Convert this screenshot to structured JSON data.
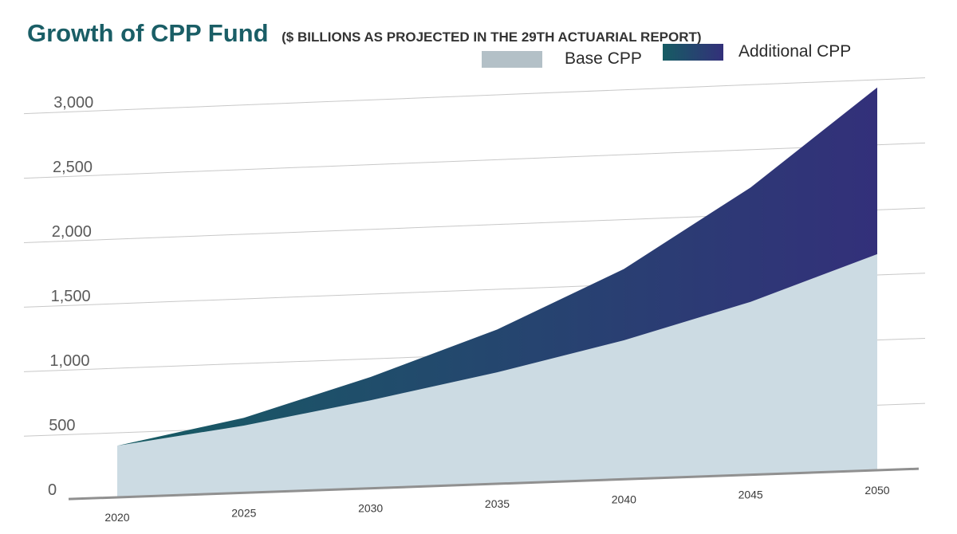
{
  "colors": {
    "title": "#1a5e66",
    "subtitle": "#333333",
    "base_area": "#ccdbe3",
    "base_legend": "#b3c0c7",
    "additional_start": "#165c63",
    "additional_end": "#33307a",
    "gridline": "#c8c8c8",
    "axis": "#909090",
    "tick_text": "#5a5a5a"
  },
  "chart_data": {
    "type": "area",
    "stacked": true,
    "title": "Growth of CPP Fund",
    "subtitle": "($ BILLIONS AS PROJECTED IN THE 29TH ACTUARIAL REPORT)",
    "x": [
      2020,
      2025,
      2030,
      2035,
      2040,
      2045,
      2050
    ],
    "x_tick_labels": [
      "2020",
      "2025",
      "2030",
      "2035",
      "2040",
      "2045",
      "2050"
    ],
    "y_tick_labels": [
      "0",
      "500",
      "1,000",
      "1,500",
      "2,000",
      "2,500",
      "3,000"
    ],
    "ylim": [
      0,
      3000
    ],
    "grid": true,
    "legend_position": "top-right",
    "series": [
      {
        "name": "Base CPP",
        "values": [
          400,
          520,
          680,
          860,
          1070,
          1330,
          1660
        ]
      },
      {
        "name": "Additional CPP",
        "values": [
          0,
          60,
          180,
          330,
          550,
          880,
          1280
        ]
      }
    ]
  }
}
